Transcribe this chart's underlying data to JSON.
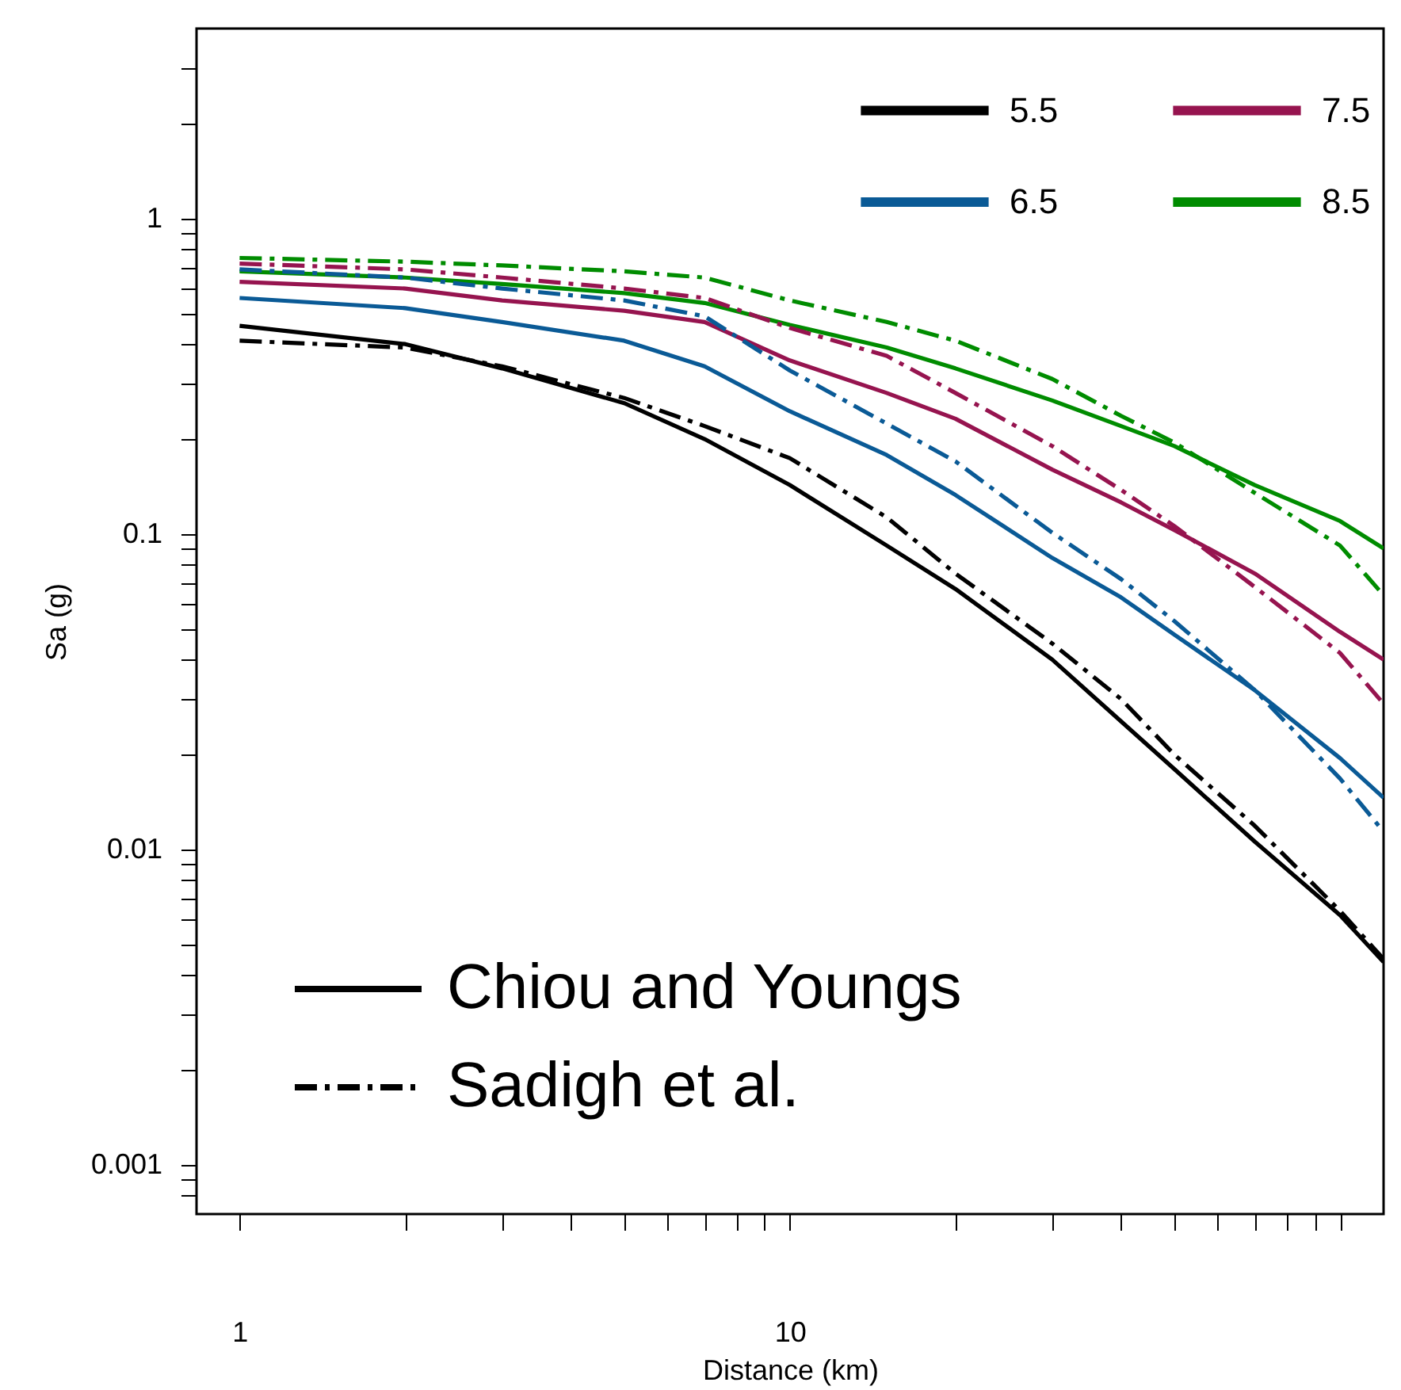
{
  "chart_data": {
    "type": "line",
    "xlabel": "Distance (km)",
    "ylabel": "Sa (g)",
    "log": "xy",
    "grid": false,
    "legend": "top right",
    "marker": "none",
    "annotations": [
      "Chiou and Youngs",
      "Sadigh et al."
    ],
    "x": [
      1,
      2,
      3,
      5,
      7,
      10,
      15,
      20,
      30,
      40,
      50,
      70,
      100,
      120
    ],
    "xlim": [
      0.835,
      120
    ],
    "ylim": [
      0.0007,
      4
    ],
    "xticks": [
      1,
      {
        "value": 2,
        "label": null
      },
      {
        "value": 3,
        "label": null
      },
      {
        "value": 4,
        "label": null
      },
      {
        "value": 5,
        "label": null
      },
      {
        "value": 6,
        "label": null
      },
      {
        "value": 7,
        "label": null
      },
      {
        "value": 8,
        "label": null
      },
      {
        "value": 9,
        "label": null
      },
      10,
      {
        "value": 20,
        "label": null
      },
      {
        "value": 30,
        "label": null
      },
      {
        "value": 40,
        "label": null
      },
      {
        "value": 50,
        "label": null
      },
      {
        "value": 60,
        "label": null
      },
      {
        "value": 70,
        "label": null
      },
      {
        "value": 80,
        "label": null
      },
      {
        "value": 90,
        "label": null
      },
      {
        "value": 100,
        "label": null
      }
    ],
    "yticks": [
      {
        "value": 0.0008,
        "label": null
      },
      {
        "value": 0.0009,
        "label": null
      },
      0.001,
      {
        "value": 0.002,
        "label": null
      },
      {
        "value": 0.003,
        "label": null
      },
      {
        "value": 0.004,
        "label": null
      },
      {
        "value": 0.005,
        "label": null
      },
      {
        "value": 0.006,
        "label": null
      },
      {
        "value": 0.007,
        "label": null
      },
      {
        "value": 0.008,
        "label": null
      },
      {
        "value": 0.009,
        "label": null
      },
      0.01,
      {
        "value": 0.02,
        "label": null
      },
      {
        "value": 0.03,
        "label": null
      },
      {
        "value": 0.04,
        "label": null
      },
      {
        "value": 0.05,
        "label": null
      },
      {
        "value": 0.06,
        "label": null
      },
      {
        "value": 0.07,
        "label": null
      },
      {
        "value": 0.08,
        "label": null
      },
      {
        "value": 0.09,
        "label": null
      },
      0.1,
      {
        "value": 0.2,
        "label": null
      },
      {
        "value": 0.3,
        "label": null
      },
      {
        "value": 0.4,
        "label": null
      },
      {
        "value": 0.5,
        "label": null
      },
      {
        "value": 0.6,
        "label": null
      },
      {
        "value": 0.7,
        "label": null
      },
      {
        "value": 0.8,
        "label": null
      },
      {
        "value": 0.9,
        "label": null
      },
      1,
      {
        "value": 2,
        "label": null
      },
      {
        "value": 3,
        "label": null
      }
    ],
    "series": [
      {
        "name": "5.5",
        "color": "#000000",
        "line_style": "solid",
        "values": [
          0.457,
          0.4,
          0.335,
          0.26,
          0.2,
          0.143,
          0.092,
          0.067,
          0.04,
          0.0255,
          0.018,
          0.0106,
          0.0062,
          0.0044
        ]
      },
      {
        "name": "6.5",
        "color": "#0a5a96",
        "line_style": "solid",
        "values": [
          0.56,
          0.52,
          0.47,
          0.41,
          0.34,
          0.245,
          0.178,
          0.133,
          0.084,
          0.063,
          0.048,
          0.032,
          0.0195,
          0.0146
        ]
      },
      {
        "name": "7.5",
        "color": "#96144f",
        "line_style": "solid",
        "values": [
          0.63,
          0.6,
          0.55,
          0.51,
          0.47,
          0.355,
          0.28,
          0.232,
          0.16,
          0.126,
          0.103,
          0.075,
          0.049,
          0.04
        ]
      },
      {
        "name": "8.5",
        "color": "#008c00",
        "line_style": "solid",
        "values": [
          0.68,
          0.65,
          0.62,
          0.58,
          0.54,
          0.46,
          0.39,
          0.335,
          0.265,
          0.22,
          0.19,
          0.143,
          0.11,
          0.09
        ]
      },
      {
        "color": "#000000",
        "line_style": "dashed",
        "values": [
          0.41,
          0.39,
          0.34,
          0.27,
          0.22,
          0.174,
          0.113,
          0.075,
          0.045,
          0.03,
          0.02,
          0.0119,
          0.0064,
          0.0045
        ]
      },
      {
        "color": "#0a5a96",
        "line_style": "dashed",
        "values": [
          0.69,
          0.65,
          0.6,
          0.55,
          0.49,
          0.33,
          0.224,
          0.17,
          0.101,
          0.072,
          0.053,
          0.032,
          0.0168,
          0.0114
        ]
      },
      {
        "color": "#96144f",
        "line_style": "dashed",
        "values": [
          0.72,
          0.69,
          0.65,
          0.6,
          0.56,
          0.45,
          0.367,
          0.28,
          0.19,
          0.138,
          0.106,
          0.068,
          0.042,
          0.029
        ]
      },
      {
        "color": "#008c00",
        "line_style": "dashed",
        "values": [
          0.75,
          0.73,
          0.71,
          0.68,
          0.65,
          0.55,
          0.47,
          0.41,
          0.31,
          0.237,
          0.195,
          0.135,
          0.092,
          0.064
        ]
      }
    ]
  }
}
